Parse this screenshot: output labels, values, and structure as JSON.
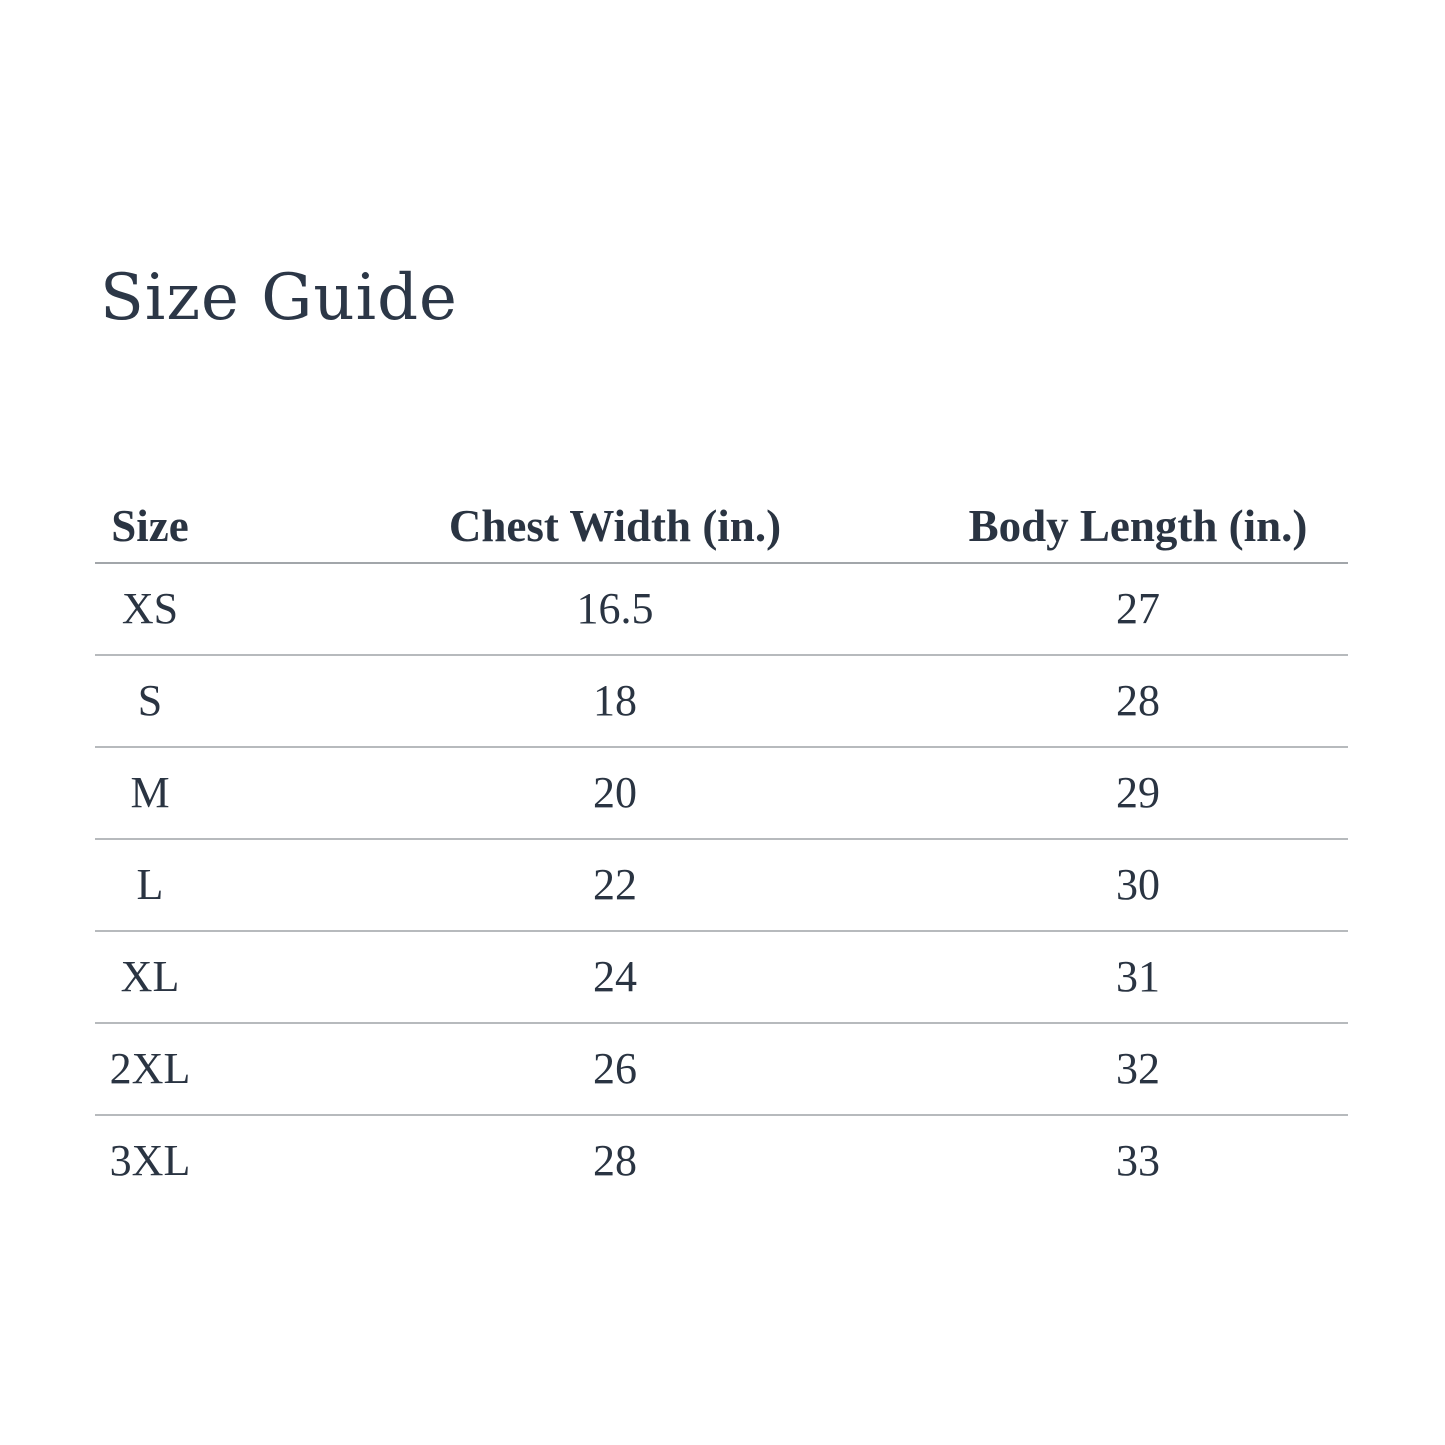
{
  "page": {
    "background": "#ffffff"
  },
  "colors": {
    "text": "#2a3442",
    "title_text": "#2c3747",
    "header_rule": "#a2a6aa",
    "row_rule": "#b7babd"
  },
  "title": "Size Guide",
  "table": {
    "columns": [
      "Size",
      "Chest Width (in.)",
      "Body Length (in.)"
    ],
    "rows": [
      [
        "XS",
        "16.5",
        "27"
      ],
      [
        "S",
        "18",
        "28"
      ],
      [
        "M",
        "20",
        "29"
      ],
      [
        "L",
        "22",
        "30"
      ],
      [
        "XL",
        "24",
        "31"
      ],
      [
        "2XL",
        "26",
        "32"
      ],
      [
        "3XL",
        "28",
        "33"
      ]
    ]
  }
}
